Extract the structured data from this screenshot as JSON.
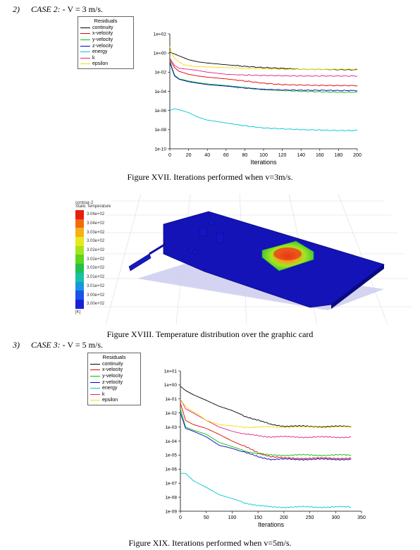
{
  "case2": {
    "number": "2)",
    "label": "CASE 2:",
    "text": " - V = 3 m/s."
  },
  "case3": {
    "number": "3)",
    "label": "CASE 3:",
    "text": " - V = 5 m/s."
  },
  "captions": {
    "fig17": "Figure XVII. Iterations performed when v=3m/s.",
    "fig18": "Figure XVIII. Temperature distribution over the graphic card",
    "fig19": "Figure XIX. Iterations performed when v=5m/s."
  },
  "legend_title": "Residuals",
  "contour": {
    "title_line1": "contour-2",
    "title_line2": "Static Temperature",
    "unit": "[K]",
    "levels": [
      "3.04e+02",
      "3.04e+02",
      "3.03e+02",
      "3.03e+02",
      "3.02e+02",
      "3.02e+02",
      "3.02e+02",
      "3.01e+02",
      "3.01e+02",
      "3.00e+02",
      "3.00e+02"
    ],
    "colors": [
      "#e81e0c",
      "#f26a10",
      "#f5b214",
      "#e7e91c",
      "#a6e51c",
      "#5ed41e",
      "#22c04c",
      "#18c0a8",
      "#1897e0",
      "#1a55e8",
      "#1a20d8"
    ]
  },
  "chart_data": [
    {
      "type": "line",
      "title": "",
      "xlabel": "Iterations",
      "ylabel": "",
      "yscale": "log",
      "xlim": [
        0,
        200
      ],
      "ylim": [
        1e-10,
        100
      ],
      "xticks": [
        "0",
        "20",
        "40",
        "60",
        "80",
        "100",
        "120",
        "140",
        "160",
        "180",
        "200"
      ],
      "yticks": [
        "1e-10",
        "1e-08",
        "1e-06",
        "1e-04",
        "1e-02",
        "1e+00",
        "1e+02"
      ],
      "legend_title": "Residuals",
      "legend_position": "top-left outside",
      "series": [
        {
          "name": "continuity",
          "color": "#000000",
          "x": [
            0,
            5,
            10,
            20,
            30,
            40,
            60,
            80,
            100,
            120,
            140,
            160,
            180,
            200
          ],
          "values": [
            1.2,
            0.8,
            0.5,
            0.2,
            0.12,
            0.09,
            0.06,
            0.04,
            0.03,
            0.025,
            0.02,
            0.02,
            0.018,
            0.018
          ]
        },
        {
          "name": "x-velocity",
          "color": "#e00000",
          "x": [
            0,
            5,
            10,
            20,
            30,
            40,
            60,
            80,
            100,
            120,
            140,
            160,
            180,
            200
          ],
          "values": [
            0.2,
            0.03,
            0.012,
            0.006,
            0.004,
            0.003,
            0.002,
            0.0012,
            0.0007,
            0.0005,
            0.00045,
            0.00042,
            0.0004,
            0.0004
          ]
        },
        {
          "name": "y-velocity",
          "color": "#00c000",
          "x": [
            0,
            5,
            10,
            20,
            30,
            40,
            60,
            80,
            100,
            120,
            140,
            160,
            180,
            200
          ],
          "values": [
            0.15,
            0.005,
            0.002,
            0.0012,
            0.0008,
            0.0006,
            0.0004,
            0.00025,
            0.00015,
            0.00012,
            0.0001,
            9e-05,
            8e-05,
            8e-05
          ]
        },
        {
          "name": "z-velocity",
          "color": "#0000c8",
          "x": [
            0,
            5,
            10,
            20,
            30,
            40,
            60,
            80,
            100,
            120,
            140,
            160,
            180,
            200
          ],
          "values": [
            0.1,
            0.004,
            0.0018,
            0.001,
            0.0007,
            0.0005,
            0.00035,
            0.00022,
            0.00016,
            0.00014,
            0.00013,
            0.00013,
            0.00012,
            0.00012
          ]
        },
        {
          "name": "energy",
          "color": "#00c8d0",
          "x": [
            0,
            5,
            10,
            20,
            30,
            40,
            60,
            80,
            100,
            120,
            140,
            160,
            180,
            200
          ],
          "values": [
            1e-06,
            1.5e-06,
            1.2e-06,
            6e-07,
            2e-07,
            1e-07,
            5e-08,
            2.5e-08,
            1.5e-08,
            1.2e-08,
            1e-08,
            9e-09,
            8e-09,
            8e-09
          ]
        },
        {
          "name": "k",
          "color": "#e0208a",
          "x": [
            0,
            5,
            10,
            20,
            30,
            40,
            60,
            80,
            100,
            120,
            140,
            160,
            180,
            200
          ],
          "values": [
            0.3,
            0.05,
            0.025,
            0.02,
            0.015,
            0.01,
            0.006,
            0.005,
            0.0045,
            0.0042,
            0.004,
            0.004,
            0.004,
            0.004
          ]
        },
        {
          "name": "epsilon",
          "color": "#f0e000",
          "x": [
            0,
            3,
            8,
            15,
            25,
            40,
            60,
            80,
            100,
            120,
            140,
            160,
            180,
            200
          ],
          "values": [
            5,
            0.5,
            0.15,
            0.06,
            0.04,
            0.035,
            0.03,
            0.025,
            0.022,
            0.02,
            0.02,
            0.02,
            0.02,
            0.02
          ]
        }
      ]
    },
    {
      "type": "line",
      "title": "",
      "xlabel": "Iterations",
      "ylabel": "",
      "yscale": "log",
      "xlim": [
        0,
        350
      ],
      "ylim": [
        1e-09,
        10
      ],
      "xticks": [
        "0",
        "50",
        "100",
        "150",
        "200",
        "250",
        "300",
        "350"
      ],
      "yticks": [
        "1e-09",
        "1e-08",
        "1e-07",
        "1e-06",
        "1e-05",
        "1e-04",
        "1e-03",
        "1e-02",
        "1e-01",
        "1e+00",
        "1e+01"
      ],
      "legend_title": "Residuals",
      "legend_position": "top-left outside",
      "series": [
        {
          "name": "continuity",
          "color": "#000000",
          "x": [
            0,
            10,
            25,
            50,
            75,
            100,
            125,
            150,
            175,
            200,
            250,
            300,
            330
          ],
          "values": [
            0.8,
            0.4,
            0.2,
            0.08,
            0.03,
            0.015,
            0.006,
            0.003,
            0.0015,
            0.0012,
            0.0011,
            0.0011,
            0.0011
          ]
        },
        {
          "name": "x-velocity",
          "color": "#e00000",
          "x": [
            0,
            10,
            25,
            50,
            75,
            100,
            125,
            150,
            175,
            200,
            250,
            300,
            330
          ],
          "values": [
            0.05,
            0.003,
            0.0015,
            0.0008,
            0.0003,
            0.0001,
            4e-05,
            1.5e-05,
            8e-06,
            6e-06,
            6e-06,
            6e-06,
            6e-06
          ]
        },
        {
          "name": "y-velocity",
          "color": "#00c000",
          "x": [
            0,
            10,
            25,
            50,
            75,
            100,
            125,
            150,
            175,
            200,
            250,
            300,
            330
          ],
          "values": [
            0.02,
            0.001,
            0.0006,
            0.0003,
            8e-05,
            4e-05,
            2e-05,
            1.2e-05,
            1e-05,
            1e-05,
            1e-05,
            1e-05,
            1e-05
          ]
        },
        {
          "name": "z-velocity",
          "color": "#0000c8",
          "x": [
            0,
            10,
            25,
            50,
            75,
            100,
            125,
            150,
            175,
            200,
            250,
            300,
            330
          ],
          "values": [
            0.01,
            0.0008,
            0.0005,
            0.0002,
            5e-05,
            3e-05,
            1.5e-05,
            8e-06,
            5e-06,
            5e-06,
            5e-06,
            5e-06,
            5e-06
          ]
        },
        {
          "name": "energy",
          "color": "#00c8d0",
          "x": [
            0,
            10,
            25,
            50,
            75,
            100,
            125,
            150,
            175,
            200,
            250,
            300,
            330
          ],
          "values": [
            5e-07,
            5e-07,
            1.5e-07,
            5e-08,
            1.5e-08,
            8e-09,
            4e-09,
            2.5e-09,
            2e-09,
            2e-09,
            2e-09,
            2e-09,
            2e-09
          ]
        },
        {
          "name": "k",
          "color": "#e0208a",
          "x": [
            0,
            10,
            25,
            50,
            75,
            100,
            125,
            150,
            175,
            200,
            250,
            300,
            330
          ],
          "values": [
            0.1,
            0.02,
            0.01,
            0.003,
            0.001,
            0.0005,
            0.0003,
            0.00025,
            0.0002,
            0.0002,
            0.00019,
            0.00019,
            0.00019
          ]
        },
        {
          "name": "epsilon",
          "color": "#f0e000",
          "x": [
            0,
            5,
            15,
            30,
            50,
            75,
            100,
            125,
            150,
            200,
            250,
            300,
            330
          ],
          "values": [
            0.1,
            0.05,
            0.02,
            0.01,
            0.003,
            0.0015,
            0.0012,
            0.001,
            0.001,
            0.001,
            0.001,
            0.001,
            0.001
          ]
        }
      ]
    }
  ]
}
